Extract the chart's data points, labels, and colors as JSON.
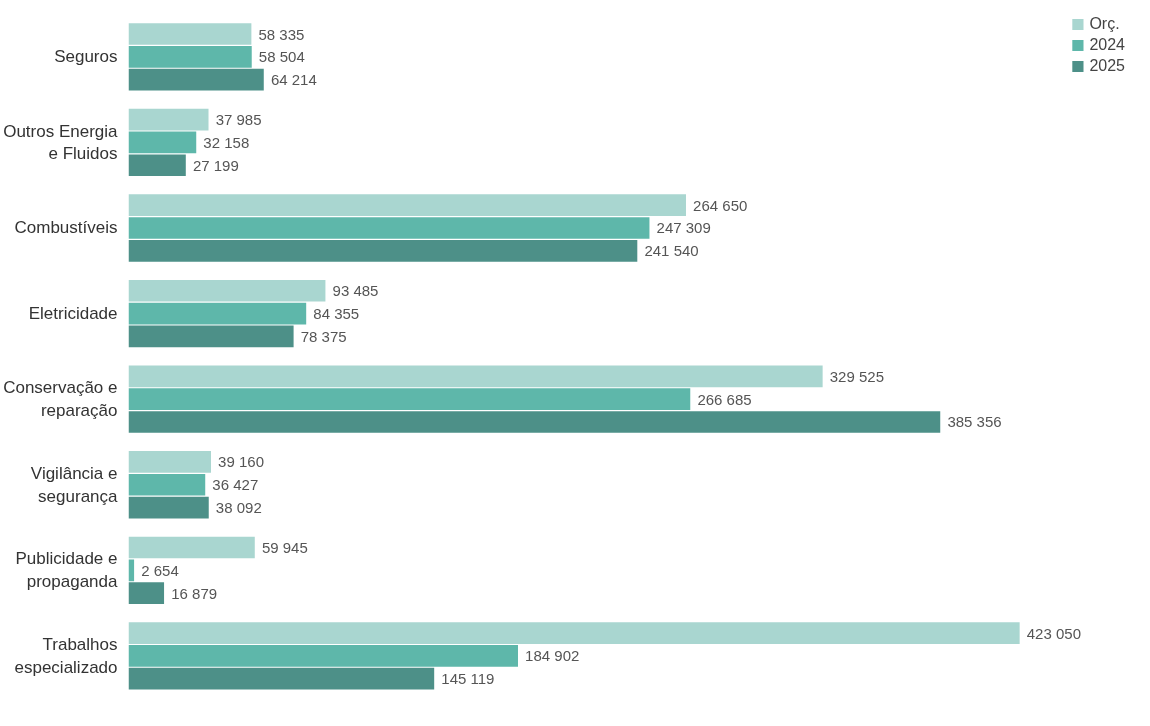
{
  "chart_data": {
    "type": "bar",
    "orientation": "horizontal",
    "categories": [
      "Seguros",
      "Outros Energia\ne Fluidos",
      "Combustíveis",
      "Eletricidade",
      "Conservação e\nreparação",
      "Vigilância e\nsegurança",
      "Publicidade e\npropaganda",
      "Trabalhos\nespecializado"
    ],
    "series": [
      {
        "name": "Orç.",
        "color": "#a9d6d0",
        "values": [
          58335,
          37985,
          264650,
          93485,
          329525,
          39160,
          59945,
          423050
        ],
        "value_labels": [
          "58 335",
          "37 985",
          "264 650",
          "93 485",
          "329 525",
          "39 160",
          "59 945",
          "423 050"
        ]
      },
      {
        "name": "2024",
        "color": "#5eb7aa",
        "values": [
          58504,
          32158,
          247309,
          84355,
          266685,
          36427,
          2654,
          184902
        ],
        "value_labels": [
          "58 504",
          "32 158",
          "247 309",
          "84 355",
          "266 685",
          "36 427",
          "2 654",
          "184 902"
        ]
      },
      {
        "name": "2025",
        "color": "#4d9088",
        "values": [
          64214,
          27199,
          241540,
          78375,
          385356,
          38092,
          16879,
          145119
        ],
        "value_labels": [
          "64 214",
          "27 199",
          "241 540",
          "78 375",
          "385 356",
          "38 092",
          "16 879",
          "145 119"
        ]
      }
    ],
    "legend": "top right",
    "grid": false
  }
}
